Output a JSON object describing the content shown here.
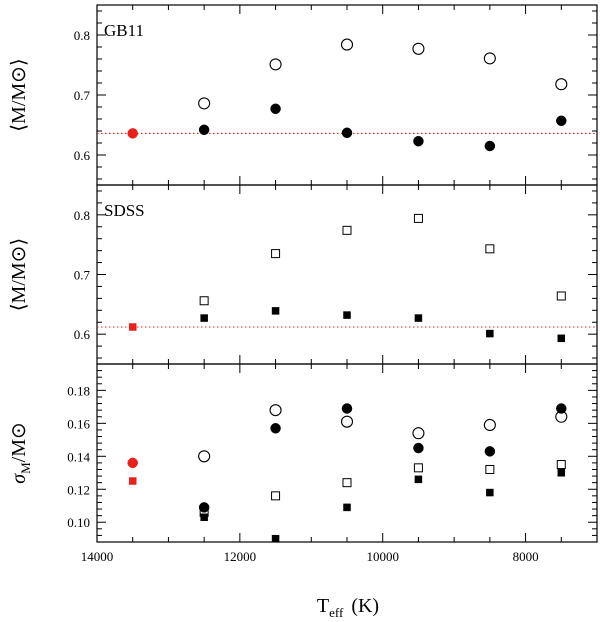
{
  "chart_data": {
    "type": "scatter",
    "xlabel_main": "T",
    "xlabel_sub": "eff",
    "xlabel_unit": "(K)",
    "xlim": [
      14000,
      7000
    ],
    "xticks": [
      14000,
      12000,
      10000,
      8000
    ],
    "xtick_labels": [
      "14000",
      "12000",
      "10000",
      "8000"
    ],
    "colors": {
      "red": "#e8221b",
      "black": "#000000",
      "ref_line": "#e8221b"
    },
    "panels": [
      {
        "id": "gb11",
        "label": "GB11",
        "ylabel": "⟨M/M⊙⟩",
        "ylim": [
          0.55,
          0.85
        ],
        "yticks": [
          0.6,
          0.7,
          0.8
        ],
        "ytick_labels": [
          "0.6",
          "0.7",
          "0.8"
        ],
        "ref_line": 0.636,
        "series": [
          {
            "name": "open-circle",
            "marker": "circle",
            "fill": "open",
            "color": "black",
            "x": [
              12500,
              11500,
              10500,
              9500,
              8500,
              7500
            ],
            "y": [
              0.686,
              0.751,
              0.784,
              0.777,
              0.761,
              0.718
            ]
          },
          {
            "name": "filled-circle",
            "marker": "circle",
            "fill": "filled",
            "color": "black",
            "x": [
              12500,
              11500,
              10500,
              9500,
              8500,
              7500
            ],
            "y": [
              0.642,
              0.677,
              0.637,
              0.623,
              0.615,
              0.657
            ]
          },
          {
            "name": "red-circle",
            "marker": "circle",
            "fill": "filled",
            "color": "red",
            "x": [
              13500
            ],
            "y": [
              0.636
            ]
          }
        ]
      },
      {
        "id": "sdss",
        "label": "SDSS",
        "ylabel": "⟨M/M⊙⟩",
        "ylim": [
          0.55,
          0.85
        ],
        "yticks": [
          0.6,
          0.7,
          0.8
        ],
        "ytick_labels": [
          "0.6",
          "0.7",
          "0.8"
        ],
        "ref_line": 0.612,
        "series": [
          {
            "name": "open-square",
            "marker": "square",
            "fill": "open",
            "color": "black",
            "x": [
              12500,
              11500,
              10500,
              9500,
              8500,
              7500
            ],
            "y": [
              0.656,
              0.735,
              0.774,
              0.794,
              0.743,
              0.664
            ]
          },
          {
            "name": "filled-square",
            "marker": "square",
            "fill": "filled",
            "color": "black",
            "x": [
              12500,
              11500,
              10500,
              9500,
              8500,
              7500
            ],
            "y": [
              0.627,
              0.639,
              0.632,
              0.627,
              0.601,
              0.593
            ]
          },
          {
            "name": "red-square",
            "marker": "square",
            "fill": "filled",
            "color": "red",
            "x": [
              13500
            ],
            "y": [
              0.612
            ]
          }
        ]
      },
      {
        "id": "sigma",
        "label": "",
        "ylabel_main": "σ",
        "ylabel_sub": "M",
        "ylabel_rest": "/M⊙",
        "ylim": [
          0.088,
          0.196
        ],
        "yticks": [
          0.1,
          0.12,
          0.14,
          0.16,
          0.18
        ],
        "ytick_labels": [
          "0.10",
          "0.12",
          "0.14",
          "0.16",
          "0.18"
        ],
        "ref_line": null,
        "series": [
          {
            "name": "open-circle",
            "marker": "circle",
            "fill": "open",
            "color": "black",
            "x": [
              12500,
              11500,
              10500,
              9500,
              8500,
              7500
            ],
            "y": [
              0.14,
              0.168,
              0.161,
              0.154,
              0.159,
              0.164
            ]
          },
          {
            "name": "filled-circle",
            "marker": "circle",
            "fill": "filled",
            "color": "black",
            "x": [
              12500,
              11500,
              10500,
              9500,
              8500,
              7500
            ],
            "y": [
              0.109,
              0.157,
              0.169,
              0.145,
              0.143,
              0.169
            ]
          },
          {
            "name": "open-square",
            "marker": "square",
            "fill": "open",
            "color": "black",
            "x": [
              12500,
              11500,
              10500,
              9500,
              8500,
              7500
            ],
            "y": [
              0.106,
              0.116,
              0.124,
              0.133,
              0.132,
              0.135
            ]
          },
          {
            "name": "filled-square",
            "marker": "square",
            "fill": "filled",
            "color": "black",
            "x": [
              12500,
              11500,
              10500,
              9500,
              8500,
              7500
            ],
            "y": [
              0.103,
              0.09,
              0.109,
              0.126,
              0.118,
              0.13
            ]
          },
          {
            "name": "red-circle",
            "marker": "circle",
            "fill": "filled",
            "color": "red",
            "x": [
              13500
            ],
            "y": [
              0.136
            ]
          },
          {
            "name": "red-square",
            "marker": "square",
            "fill": "filled",
            "color": "red",
            "x": [
              13500
            ],
            "y": [
              0.125
            ]
          }
        ]
      }
    ]
  }
}
